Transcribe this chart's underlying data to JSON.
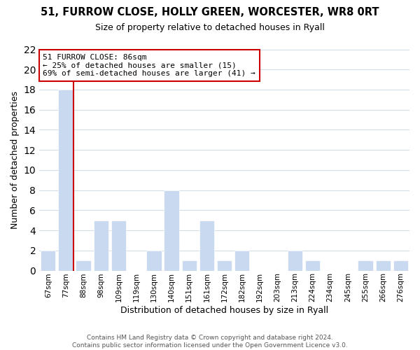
{
  "title": "51, FURROW CLOSE, HOLLY GREEN, WORCESTER, WR8 0RT",
  "subtitle": "Size of property relative to detached houses in Ryall",
  "xlabel": "Distribution of detached houses by size in Ryall",
  "ylabel": "Number of detached properties",
  "bar_labels": [
    "67sqm",
    "77sqm",
    "88sqm",
    "98sqm",
    "109sqm",
    "119sqm",
    "130sqm",
    "140sqm",
    "151sqm",
    "161sqm",
    "172sqm",
    "182sqm",
    "192sqm",
    "203sqm",
    "213sqm",
    "224sqm",
    "234sqm",
    "245sqm",
    "255sqm",
    "266sqm",
    "276sqm"
  ],
  "bar_values": [
    2,
    18,
    1,
    5,
    5,
    0,
    2,
    8,
    1,
    5,
    1,
    2,
    0,
    0,
    2,
    1,
    0,
    0,
    1,
    1,
    1
  ],
  "bar_color": "#c9d9f0",
  "highlight_line_color": "#cc0000",
  "ylim": [
    0,
    22
  ],
  "yticks": [
    0,
    2,
    4,
    6,
    8,
    10,
    12,
    14,
    16,
    18,
    20,
    22
  ],
  "annotation_title": "51 FURROW CLOSE: 86sqm",
  "annotation_line1": "← 25% of detached houses are smaller (15)",
  "annotation_line2": "69% of semi-detached houses are larger (41) →",
  "annotation_box_color": "#ffffff",
  "annotation_box_edge": "#cc0000",
  "footer1": "Contains HM Land Registry data © Crown copyright and database right 2024.",
  "footer2": "Contains public sector information licensed under the Open Government Licence v3.0.",
  "background_color": "#ffffff",
  "grid_color": "#d0dce8"
}
